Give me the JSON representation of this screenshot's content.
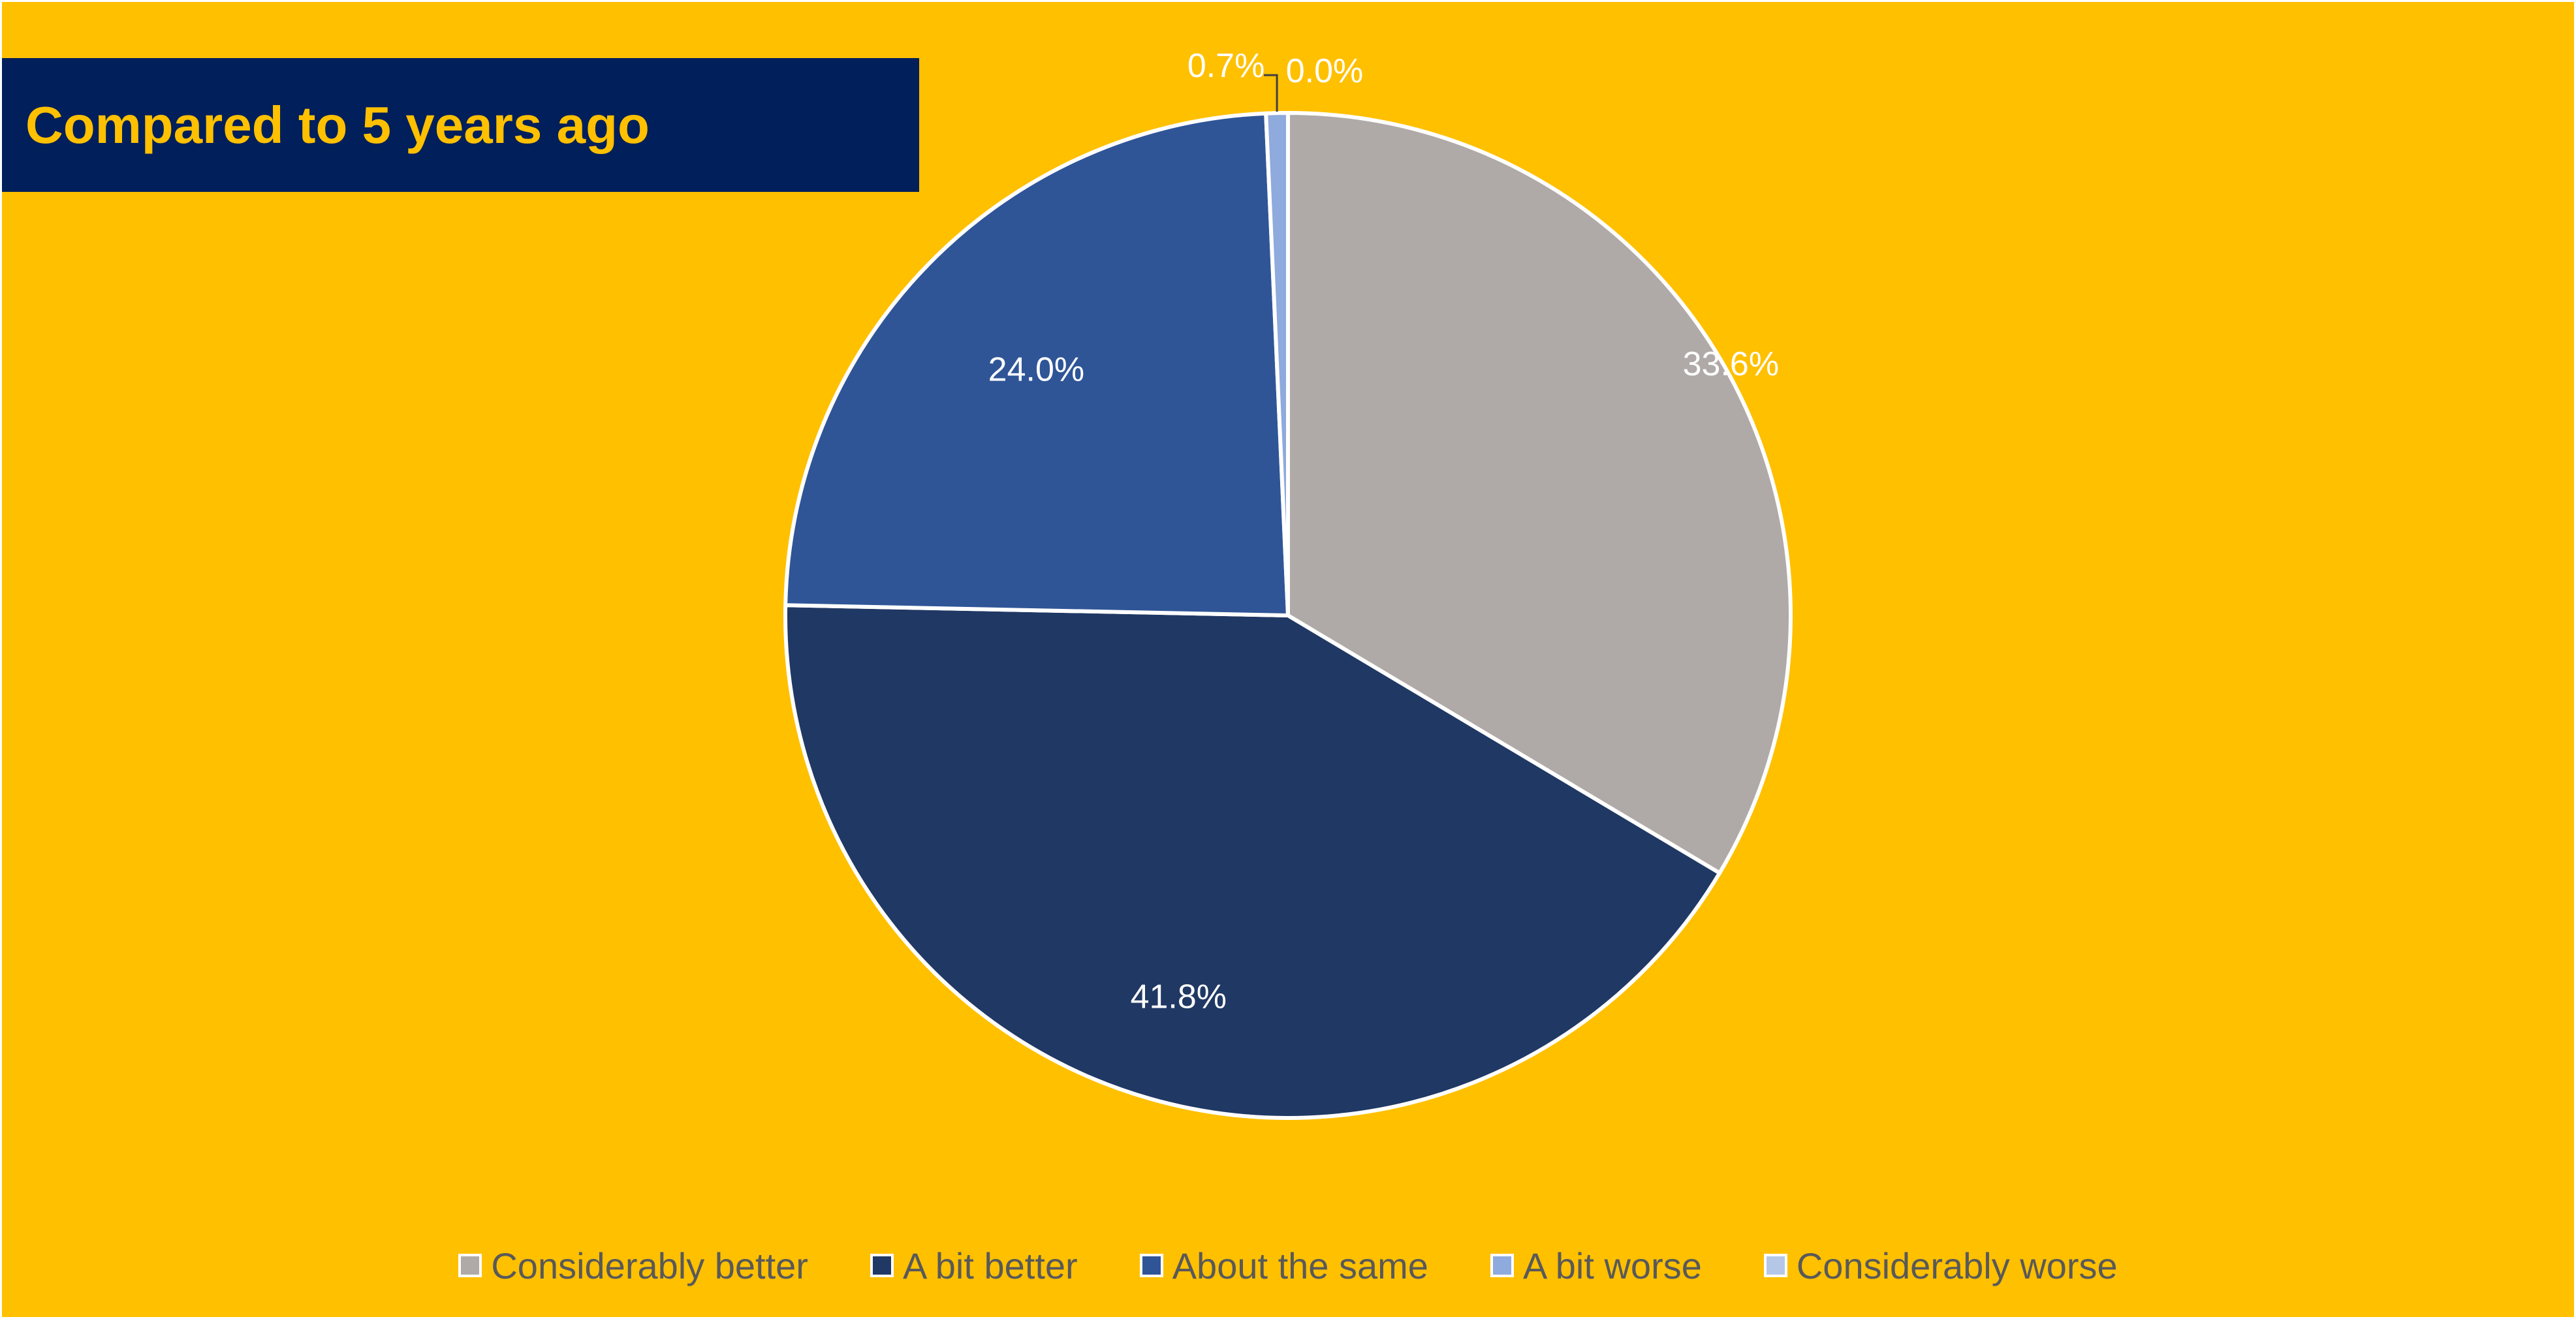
{
  "chart_data": {
    "type": "pie",
    "title": "Compared to 5 years ago",
    "categories": [
      "Considerably better",
      "A bit better",
      "About the same",
      "A bit worse",
      "Considerably worse"
    ],
    "values": [
      33.6,
      41.8,
      24.0,
      0.7,
      0.0
    ],
    "labels": [
      "33.6%",
      "41.8%",
      "24.0%",
      "0.7%",
      "0.0%"
    ],
    "colors": [
      "#AFAAA8",
      "#203864",
      "#2F5597",
      "#8FAADC",
      "#B4C7E7"
    ],
    "legend_position": "bottom",
    "start_angle": "12 o'clock, clockwise"
  },
  "colors": {
    "background": "#FFC000",
    "title_box": "#001F5B",
    "title_text": "#FFC000",
    "legend_text": "#595959",
    "label_text": "#FFFFFF"
  }
}
